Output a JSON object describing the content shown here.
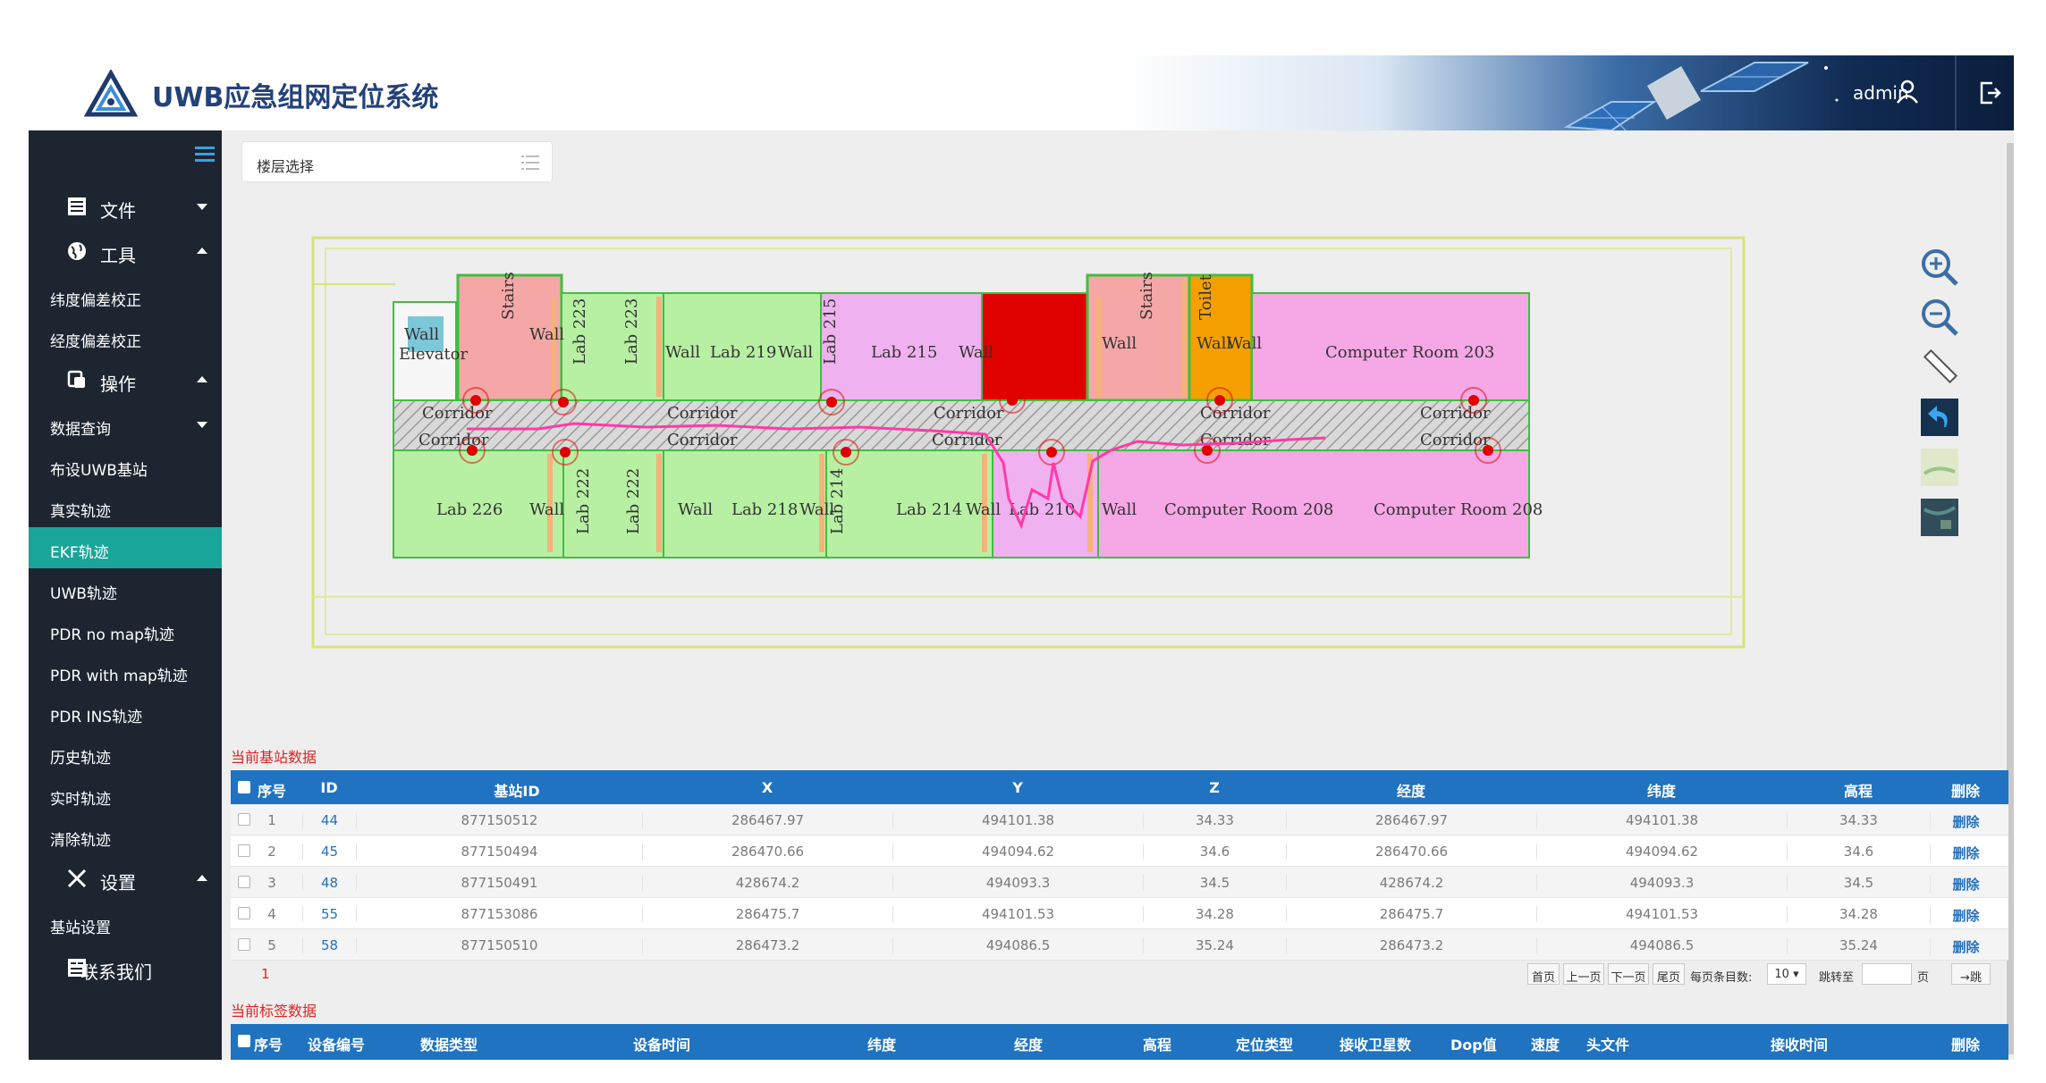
{
  "header": {
    "title": "UWB应急组网定位系统",
    "user": "admin"
  },
  "sidebar": {
    "groups": [
      {
        "label": "文件"
      },
      {
        "label": "工具"
      },
      {
        "label": "操作"
      },
      {
        "label": "设置"
      },
      {
        "label": "联系我们"
      }
    ],
    "items": [
      {
        "label": "纬度偏差校正"
      },
      {
        "label": "经度偏差校正"
      },
      {
        "label": "数据查询"
      },
      {
        "label": "布设UWB基站"
      },
      {
        "label": "真实轨迹"
      },
      {
        "label": "EKF轨迹"
      },
      {
        "label": "UWB轨迹"
      },
      {
        "label": "PDR no map轨迹"
      },
      {
        "label": "PDR with map轨迹"
      },
      {
        "label": "PDR INS轨迹"
      },
      {
        "label": "历史轨迹"
      },
      {
        "label": "实时轨迹"
      },
      {
        "label": "清除轨迹"
      },
      {
        "label": "基站设置"
      }
    ],
    "active_index": 5
  },
  "floor_select": {
    "placeholder": "楼层选择"
  },
  "map": {
    "rooms": [
      "Wall",
      "Stairs",
      "Elevator",
      "Wall",
      "Lab 223",
      "Lab 223",
      "Wall",
      "Lab 219",
      "Wall",
      "Lab 215",
      "Lab 215",
      "Wall",
      "Wall",
      "Stairs",
      "Wall",
      "Toilet",
      "Wall",
      "Computer Room 203",
      "Corridor",
      "Corridor",
      "Corridor",
      "Corridor",
      "Corridor",
      "Corridor",
      "Corridor",
      "Corridor",
      "Corridor",
      "Corridor",
      "Lab 226",
      "Wall",
      "Lab 222",
      "Lab 222",
      "Wall",
      "Lab 218",
      "Wall",
      "Lab 214",
      "Lab 214",
      "Wall",
      "Lab 210",
      "Wall",
      "Computer Room 208",
      "Computer Room 208"
    ]
  },
  "base_station_section": {
    "title": "当前基站数据",
    "columns": [
      "序号",
      "ID",
      "基站ID",
      "X",
      "Y",
      "Z",
      "经度",
      "纬度",
      "高程",
      "删除"
    ],
    "rows": [
      {
        "no": "1",
        "id": "44",
        "station_id": "877150512",
        "x": "286467.97",
        "y": "494101.38",
        "z": "34.33",
        "lon": "286467.97",
        "lat": "494101.38",
        "alt": "34.33",
        "del": "删除"
      },
      {
        "no": "2",
        "id": "45",
        "station_id": "877150494",
        "x": "286470.66",
        "y": "494094.62",
        "z": "34.6",
        "lon": "286470.66",
        "lat": "494094.62",
        "alt": "34.6",
        "del": "删除"
      },
      {
        "no": "3",
        "id": "48",
        "station_id": "877150491",
        "x": "428674.2",
        "y": "494093.3",
        "z": "34.5",
        "lon": "428674.2",
        "lat": "494093.3",
        "alt": "34.5",
        "del": "删除"
      },
      {
        "no": "4",
        "id": "55",
        "station_id": "877153086",
        "x": "286475.7",
        "y": "494101.53",
        "z": "34.28",
        "lon": "286475.7",
        "lat": "494101.53",
        "alt": "34.28",
        "del": "删除"
      },
      {
        "no": "5",
        "id": "58",
        "station_id": "877150510",
        "x": "286473.2",
        "y": "494086.5",
        "z": "35.24",
        "lon": "286473.2",
        "lat": "494086.5",
        "alt": "35.24",
        "del": "删除"
      }
    ],
    "pager": {
      "current_page": "1",
      "first": "首页",
      "prev": "上一页",
      "next": "下一页",
      "last": "尾页",
      "per_page_label": "每页条目数:",
      "per_page_value": "10",
      "goto_label": "跳转至",
      "page_unit": "页",
      "go": "→跳"
    }
  },
  "tag_section": {
    "title": "当前标签数据",
    "columns": [
      "序号",
      "设备编号",
      "数据类型",
      "设备时间",
      "纬度",
      "经度",
      "高程",
      "定位类型",
      "接收卫星数",
      "Dop值",
      "速度",
      "头文件",
      "接收时间",
      "删除"
    ]
  },
  "colors": {
    "sidebar_bg": "#1d2530",
    "active": "#1aa59a",
    "table_header": "#1f73c0",
    "section_title": "#e02222"
  }
}
